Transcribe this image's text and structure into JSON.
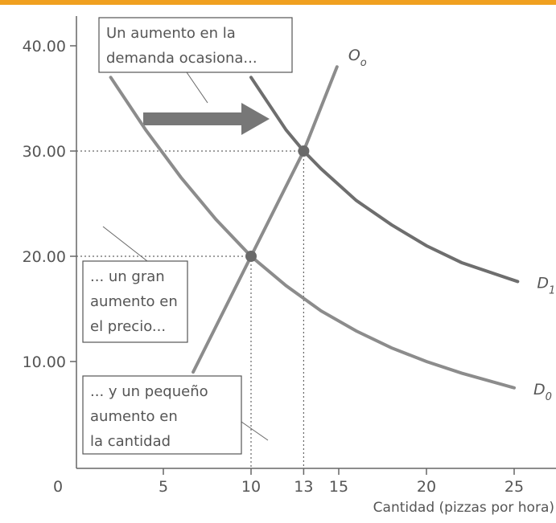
{
  "chart_data": {
    "type": "line",
    "x_axis_label": "Cantidad (pizzas por hora)",
    "xlim": [
      0,
      27
    ],
    "ylim": [
      0,
      43
    ],
    "xticks": [
      0,
      5,
      10,
      13,
      15,
      20,
      25
    ],
    "yticks": [
      {
        "value": 10,
        "label": "10.00"
      },
      {
        "value": 20,
        "label": "20.00"
      },
      {
        "value": 30,
        "label": "30.00"
      },
      {
        "value": 40,
        "label": "40.00"
      }
    ],
    "series": [
      {
        "name": "D",
        "name_sub": "0",
        "color": "#8c8c8c",
        "x": [
          2,
          4,
          6,
          8,
          10,
          12,
          14,
          16,
          18,
          20,
          22,
          25
        ],
        "values": [
          37,
          32,
          27.5,
          23.5,
          20,
          17.2,
          14.8,
          12.9,
          11.3,
          10,
          8.9,
          7.5
        ]
      },
      {
        "name": "D",
        "name_sub": "1",
        "color": "#6e6e6e",
        "x": [
          10,
          11,
          12,
          13,
          14,
          16,
          18,
          20,
          22,
          25.2
        ],
        "values": [
          37,
          34.5,
          32,
          30,
          28.3,
          25.3,
          23,
          21,
          19.4,
          17.6
        ]
      },
      {
        "name": "O",
        "name_sub": "o",
        "color": "#8c8c8c",
        "x": [
          6.7,
          10,
          13,
          14.9
        ],
        "values": [
          9,
          20,
          30,
          38
        ]
      }
    ],
    "equilibria": {
      "x": [
        10,
        13
      ],
      "values": [
        20,
        30
      ],
      "color": "#6a6a6a"
    },
    "annotations": [
      {
        "lines": [
          "Un aumento en la",
          "demanda ocasiona..."
        ]
      },
      {
        "lines": [
          "... un gran",
          "aumento en",
          "el precio..."
        ]
      },
      {
        "lines": [
          "... y un pequeño",
          "aumento en",
          "la cantidad"
        ]
      }
    ]
  }
}
